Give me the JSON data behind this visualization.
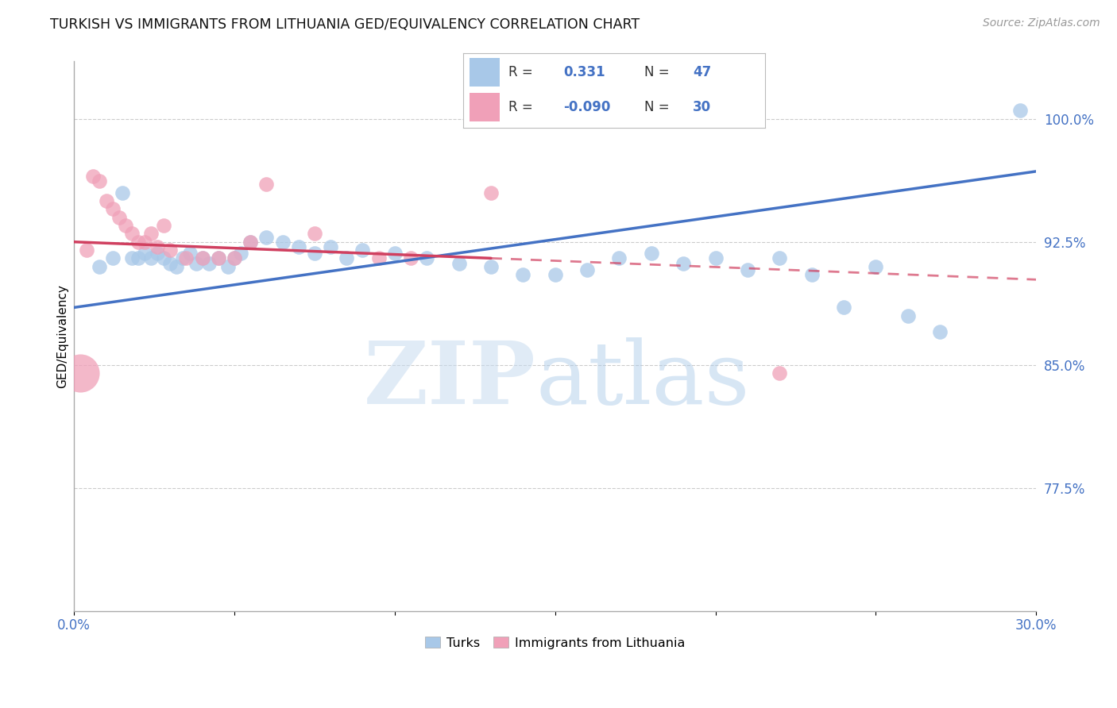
{
  "title": "TURKISH VS IMMIGRANTS FROM LITHUANIA GED/EQUIVALENCY CORRELATION CHART",
  "source": "Source: ZipAtlas.com",
  "ylabel": "GED/Equivalency",
  "xlim": [
    0.0,
    30.0
  ],
  "ylim": [
    70.0,
    103.5
  ],
  "yticks": [
    77.5,
    85.0,
    92.5,
    100.0
  ],
  "xticks": [
    0.0,
    5.0,
    10.0,
    15.0,
    20.0,
    25.0,
    30.0
  ],
  "ytick_labels": [
    "77.5%",
    "85.0%",
    "92.5%",
    "100.0%"
  ],
  "blue_R": 0.331,
  "blue_N": 47,
  "pink_R": -0.09,
  "pink_N": 30,
  "blue_color": "#A8C8E8",
  "pink_color": "#F0A0B8",
  "blue_line_color": "#4472C4",
  "pink_line_color": "#D04060",
  "blue_scatter_x": [
    1.5,
    0.8,
    1.2,
    1.8,
    2.0,
    2.2,
    2.4,
    2.6,
    2.8,
    3.0,
    3.2,
    3.4,
    3.6,
    3.8,
    4.0,
    4.2,
    4.5,
    4.8,
    5.0,
    5.2,
    5.5,
    6.0,
    6.5,
    7.0,
    7.5,
    8.0,
    8.5,
    9.0,
    10.0,
    11.0,
    12.0,
    13.0,
    14.0,
    15.0,
    16.0,
    17.0,
    18.0,
    19.0,
    20.0,
    21.0,
    22.0,
    23.0,
    24.0,
    25.0,
    26.0,
    27.0,
    29.5
  ],
  "blue_scatter_y": [
    95.5,
    91.0,
    91.5,
    91.5,
    91.5,
    91.8,
    91.5,
    91.8,
    91.5,
    91.2,
    91.0,
    91.5,
    91.8,
    91.2,
    91.5,
    91.2,
    91.5,
    91.0,
    91.5,
    91.8,
    92.5,
    92.8,
    92.5,
    92.2,
    91.8,
    92.2,
    91.5,
    92.0,
    91.8,
    91.5,
    91.2,
    91.0,
    90.5,
    90.5,
    90.8,
    91.5,
    91.8,
    91.2,
    91.5,
    90.8,
    91.5,
    90.5,
    88.5,
    91.0,
    88.0,
    87.0,
    100.5
  ],
  "pink_scatter_x": [
    0.4,
    0.6,
    0.8,
    1.0,
    1.2,
    1.4,
    1.6,
    1.8,
    2.0,
    2.2,
    2.4,
    2.6,
    2.8,
    3.0,
    3.5,
    4.0,
    4.5,
    5.0,
    5.5,
    6.0,
    7.5,
    9.5,
    10.5,
    13.0,
    22.0
  ],
  "pink_scatter_y": [
    92.0,
    96.5,
    96.2,
    95.0,
    94.5,
    94.0,
    93.5,
    93.0,
    92.5,
    92.5,
    93.0,
    92.2,
    93.5,
    92.0,
    91.5,
    91.5,
    91.5,
    91.5,
    92.5,
    96.0,
    93.0,
    91.5,
    91.5,
    95.5,
    84.5
  ],
  "large_pink_x": [
    0.2
  ],
  "large_pink_y": [
    84.5
  ],
  "blue_line_x0": 0.0,
  "blue_line_y0": 88.5,
  "blue_line_x1": 30.0,
  "blue_line_y1": 96.8,
  "pink_line_x0": 0.0,
  "pink_line_y0": 92.5,
  "pink_line_x1": 30.0,
  "pink_line_y1": 90.2,
  "pink_solid_end": 13.0,
  "legend_title_blue": "R =",
  "legend_title_pink": "R =",
  "legend_n_blue": "N =",
  "legend_n_pink": "N ="
}
